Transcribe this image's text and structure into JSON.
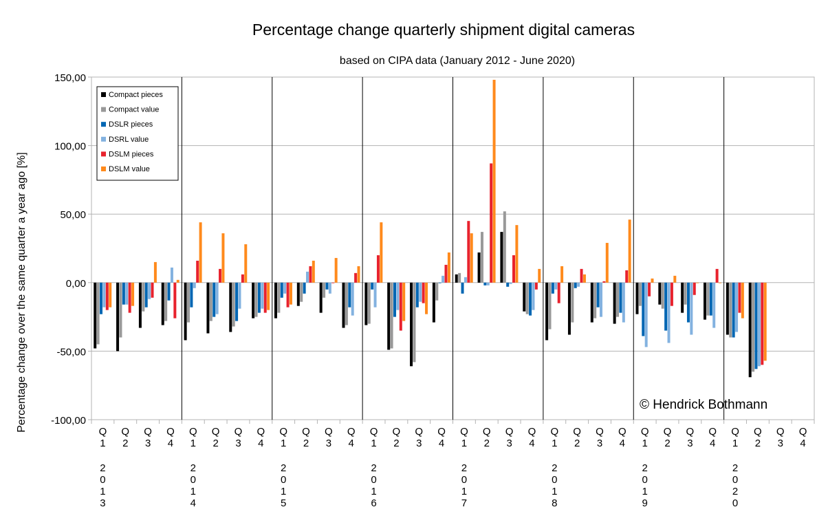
{
  "chart_data": {
    "type": "bar",
    "title": "Percentage change quarterly shipment digital cameras",
    "subtitle": "based on CIPA data (January 2012 - June 2020)",
    "ylabel": "Percentage change over the same quarter a year ago [%]",
    "xlabel": "",
    "ylim": [
      -100,
      150
    ],
    "yticks": [
      "-100,00",
      "-50,00",
      "0,00",
      "50,00",
      "100,00",
      "150,00"
    ],
    "grid": true,
    "legend_position": "top-left",
    "years": [
      "2013",
      "2014",
      "2015",
      "2016",
      "2017",
      "2018",
      "2019",
      "2020"
    ],
    "quarter_labels": [
      "Q1",
      "Q2",
      "Q3",
      "Q4"
    ],
    "categories": [
      "2013 Q1",
      "2013 Q2",
      "2013 Q3",
      "2013 Q4",
      "2014 Q1",
      "2014 Q2",
      "2014 Q3",
      "2014 Q4",
      "2015 Q1",
      "2015 Q2",
      "2015 Q3",
      "2015 Q4",
      "2016 Q1",
      "2016 Q2",
      "2016 Q3",
      "2016 Q4",
      "2017 Q1",
      "2017 Q2",
      "2017 Q3",
      "2017 Q4",
      "2018 Q1",
      "2018 Q2",
      "2018 Q3",
      "2018 Q4",
      "2019 Q1",
      "2019 Q2",
      "2019 Q3",
      "2019 Q4",
      "2020 Q1",
      "2020 Q2",
      "2020 Q3",
      "2020 Q4"
    ],
    "series": [
      {
        "name": "Compact pieces",
        "color": "#000000",
        "values": [
          -48,
          -50,
          -33,
          -31,
          -42,
          -37,
          -36,
          -26,
          -26,
          -17,
          -22,
          -33,
          -31,
          -49,
          -61,
          -29,
          6,
          22,
          37,
          -21,
          -42,
          -38,
          -29,
          -30,
          -23,
          -16,
          -22,
          -27,
          -38,
          -69,
          null,
          null
        ]
      },
      {
        "name": "Compact value",
        "color": "#999999",
        "values": [
          -45,
          -40,
          -21,
          -28,
          -29,
          -28,
          -32,
          -25,
          -22,
          -14,
          -11,
          -31,
          -30,
          -48,
          -58,
          -13,
          7,
          37,
          52,
          -23,
          -34,
          -29,
          -26,
          -25,
          -17,
          -19,
          -16,
          -24,
          -40,
          -65,
          null,
          null
        ]
      },
      {
        "name": "DSLR pieces",
        "color": "#0066b3",
        "values": [
          -23,
          -16,
          -18,
          -13,
          -18,
          -25,
          -28,
          -22,
          -11,
          -8,
          -5,
          -18,
          -5,
          -25,
          -18,
          0,
          -8,
          -2,
          -3,
          -24,
          -8,
          -4,
          -18,
          -22,
          -39,
          -35,
          -29,
          -24,
          -40,
          -63,
          null,
          null
        ]
      },
      {
        "name": "DSRL value",
        "color": "#83b2e0",
        "values": [
          -18,
          -16,
          -12,
          11,
          -4,
          -23,
          -19,
          -19,
          -8,
          8,
          -8,
          -24,
          -18,
          -20,
          -14,
          5,
          4,
          -2,
          -1,
          -20,
          -5,
          -3,
          -25,
          -29,
          -47,
          -44,
          -38,
          -33,
          -36,
          -61,
          null,
          null
        ]
      },
      {
        "name": "DSLM pieces",
        "color": "#e8222d",
        "values": [
          -20,
          -22,
          -11,
          -26,
          16,
          10,
          6,
          -22,
          -18,
          12,
          0,
          7,
          20,
          -35,
          -15,
          13,
          45,
          87,
          20,
          -5,
          -15,
          10,
          1,
          9,
          -10,
          -17,
          -9,
          10,
          -22,
          -60,
          null,
          null
        ]
      },
      {
        "name": "DSLM value",
        "color": "#ff8a1c",
        "values": [
          -18,
          -17,
          15,
          2,
          44,
          36,
          28,
          -20,
          -16,
          16,
          18,
          12,
          44,
          -28,
          -23,
          22,
          36,
          148,
          42,
          10,
          12,
          6,
          29,
          46,
          3,
          5,
          0,
          0,
          -26,
          -57,
          null,
          null
        ]
      }
    ],
    "annotation": "© Hendrick Bothmann"
  }
}
